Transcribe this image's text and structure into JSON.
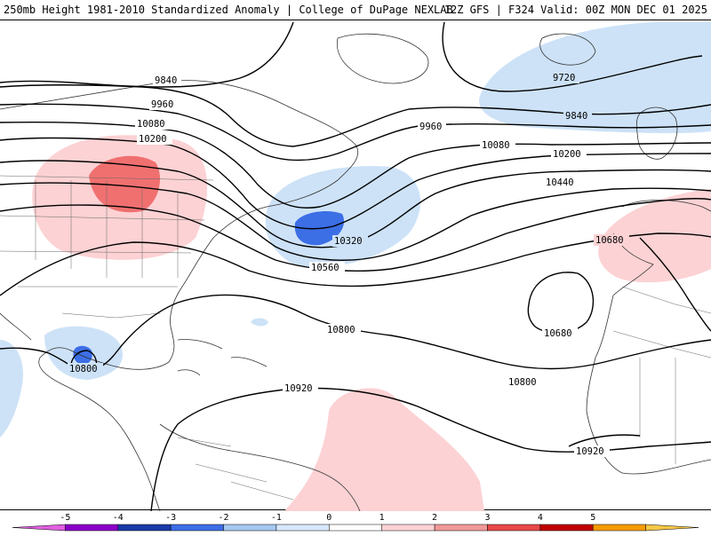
{
  "header": {
    "title_left": "250mb Height 1981-2010 Standardized Anomaly | College of DuPage NEXLAB",
    "title_right": "12Z GFS | F324 Valid: 00Z MON DEC 01 2025"
  },
  "contour_labels": [
    "9840",
    "9960",
    "10080",
    "10200",
    "9960",
    "10080",
    "10200",
    "10440",
    "9720",
    "9840",
    "10320",
    "10560",
    "10680",
    "10680",
    "10800",
    "10800",
    "10800",
    "10920",
    "10920"
  ],
  "colorbar": {
    "ticks": [
      "-5",
      "-4",
      "-3",
      "-2",
      "-1",
      "0",
      "1",
      "2",
      "3",
      "4",
      "5"
    ],
    "colors": [
      "#e060e0",
      "#8a00c8",
      "#1a3aa8",
      "#3c6ee6",
      "#a6c8f0",
      "#d6e8fa",
      "#ffffff",
      "#fcd2d4",
      "#f09898",
      "#e84848",
      "#c00000",
      "#f59a00",
      "#f7c846"
    ]
  }
}
